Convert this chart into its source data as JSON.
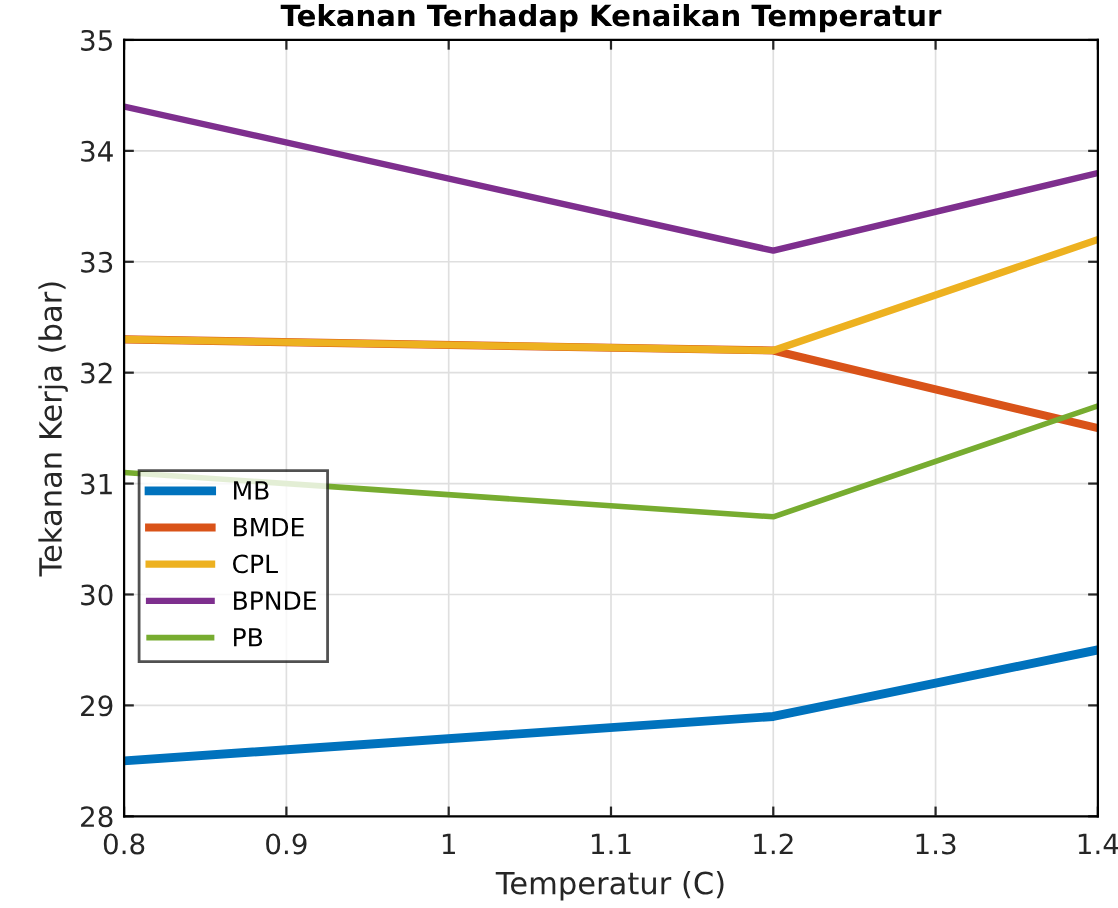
{
  "chart_data": {
    "type": "line",
    "title": "Tekanan Terhadap Kenaikan Temperatur",
    "xlabel": "Temperatur (C)",
    "ylabel": "Tekanan Kerja (bar)",
    "x": [
      0.8,
      1.2,
      1.4
    ],
    "series": [
      {
        "name": "MB",
        "color": "#0072bd",
        "values": [
          28.5,
          28.9,
          29.5
        ]
      },
      {
        "name": "BMDE",
        "color": "#d95319",
        "values": [
          32.3,
          32.2,
          31.5
        ]
      },
      {
        "name": "CPL",
        "color": "#edb120",
        "values": [
          32.3,
          32.2,
          33.2
        ]
      },
      {
        "name": "BPNDE",
        "color": "#7e2f8e",
        "values": [
          34.4,
          33.1,
          33.8
        ]
      },
      {
        "name": "PB",
        "color": "#77ac30",
        "values": [
          31.1,
          30.7,
          31.7
        ]
      }
    ],
    "xlim": [
      0.8,
      1.4
    ],
    "xticks": [
      0.8,
      0.9,
      1,
      1.1,
      1.2,
      1.3,
      1.4
    ],
    "ylim": [
      28,
      35
    ],
    "yticks": [
      28,
      29,
      30,
      31,
      32,
      33,
      34,
      35
    ],
    "grid": true,
    "legend": "bottom left",
    "marker": "none",
    "line_style": "solid"
  }
}
